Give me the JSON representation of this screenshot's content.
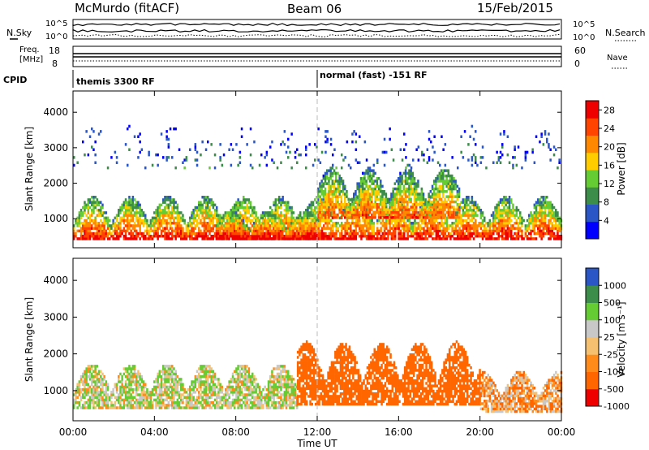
{
  "header": {
    "station": "McMurdo (fitACF)",
    "beam": "Beam 06",
    "date": "15/Feb/2015"
  },
  "summary_panels": {
    "nsky_label": "N.Sky",
    "nsearch_label": "N.Search",
    "nsky_ticks": [
      "10^5",
      "10^0"
    ],
    "nsearch_ticks": [
      "10^5",
      "10^0"
    ],
    "freq_label": [
      "Freq.",
      "[MHz]"
    ],
    "freq_ticks": [
      "18",
      "8"
    ],
    "nave_label": "Nave",
    "nave_ticks": [
      "60",
      "0"
    ],
    "cpid_label": "CPID",
    "cpid_segments": [
      {
        "label": "themis 3300 RF",
        "start_hour": 0
      },
      {
        "label": "normal (fast) -151 RF",
        "start_hour": 12
      }
    ]
  },
  "chart_data": [
    {
      "type": "heatmap",
      "title": "",
      "ylabel": "Slant Range [km]",
      "ylim": [
        180,
        4600
      ],
      "yticks": [
        "4000",
        "3000",
        "2000",
        "1000"
      ],
      "xlim": [
        0,
        24
      ],
      "xticks": [
        "00:00",
        "04:00",
        "08:00",
        "12:00",
        "16:00",
        "20:00",
        "00:00"
      ],
      "colorbar": {
        "label": "Power [dB]",
        "ticks": [
          "28",
          "24",
          "20",
          "16",
          "12",
          "8",
          "4"
        ],
        "range": [
          0,
          30
        ],
        "colors": [
          "#0000ff",
          "#2a56c6",
          "#3c8c4a",
          "#66cc33",
          "#ffcc00",
          "#ff8800",
          "#ff4400",
          "#ee0000"
        ]
      },
      "features": [
        {
          "name": "main echo band",
          "hours": [
            0,
            24
          ],
          "range_km": [
            400,
            1600
          ],
          "peak_db": 28
        },
        {
          "name": "high-power patch",
          "hours": [
            7,
            12
          ],
          "range_km": [
            400,
            1200
          ],
          "peak_db": 30
        },
        {
          "name": "upward extension",
          "hours": [
            12,
            19
          ],
          "range_km": [
            1000,
            2400
          ],
          "peak_db": 24
        },
        {
          "name": "sparse far scatter",
          "hours": [
            0,
            24
          ],
          "range_km": [
            2400,
            3600
          ],
          "peak_db": 8
        }
      ]
    },
    {
      "type": "heatmap",
      "title": "",
      "ylabel": "Slant Range [km]",
      "ylim": [
        180,
        4600
      ],
      "yticks": [
        "4000",
        "3000",
        "2000",
        "1000"
      ],
      "xlim": [
        0,
        24
      ],
      "xticks": [
        "00:00",
        "04:00",
        "08:00",
        "12:00",
        "16:00",
        "20:00",
        "00:00"
      ],
      "xlabel": "Time UT",
      "colorbar": {
        "label": "Velocity [m s⁻¹]",
        "ticks": [
          "1000",
          "500",
          "100",
          "25",
          "-25",
          "-100",
          "-500",
          "-1000"
        ],
        "range": [
          -1200,
          1200
        ],
        "colors": [
          "#ee0000",
          "#ff6600",
          "#ff8c1a",
          "#f5c070",
          "#c8c8c8",
          "#66cc33",
          "#3c8c4a",
          "#2a56c6"
        ]
      },
      "features": [
        {
          "name": "positive-velocity echoes (green/grey)",
          "hours": [
            0,
            11
          ],
          "range_km": [
            500,
            1700
          ],
          "velocity_ms": 80
        },
        {
          "name": "negative-velocity echoes (orange)",
          "hours": [
            11,
            20
          ],
          "range_km": [
            600,
            2300
          ],
          "velocity_ms": -300
        },
        {
          "name": "mixed echoes",
          "hours": [
            20,
            24
          ],
          "range_km": [
            400,
            1500
          ],
          "velocity_ms": -50
        }
      ]
    }
  ]
}
